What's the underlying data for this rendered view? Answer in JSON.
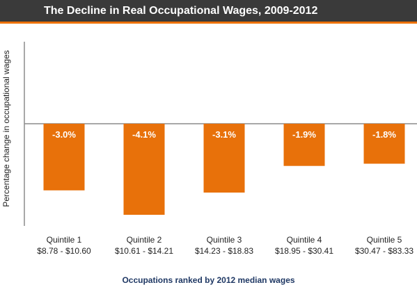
{
  "chart_data": {
    "type": "bar",
    "title": "The Decline in Real Occupational Wages, 2009-2012",
    "ylabel": "Percentage change in occupational wages",
    "xlabel": "Occupations ranked by 2012 median wages",
    "categories": [
      {
        "name": "Quintile 1",
        "range": "$8.78 - $10.60"
      },
      {
        "name": "Quintile 2",
        "range": "$10.61 - $14.21"
      },
      {
        "name": "Quintile 3",
        "range": "$14.23 - $18.83"
      },
      {
        "name": "Quintile 4",
        "range": "$18.95 - $30.41"
      },
      {
        "name": "Quintile 5",
        "range": "$30.47 - $83.33"
      }
    ],
    "values": [
      -3.0,
      -4.1,
      -3.1,
      -1.9,
      -1.8
    ],
    "data_labels": [
      "-3.0%",
      "-4.1%",
      "-3.1%",
      "-1.9%",
      "-1.8%"
    ],
    "ylim": [
      -4.5,
      3.5
    ],
    "bar_color": "#e8710a",
    "grid": false
  }
}
